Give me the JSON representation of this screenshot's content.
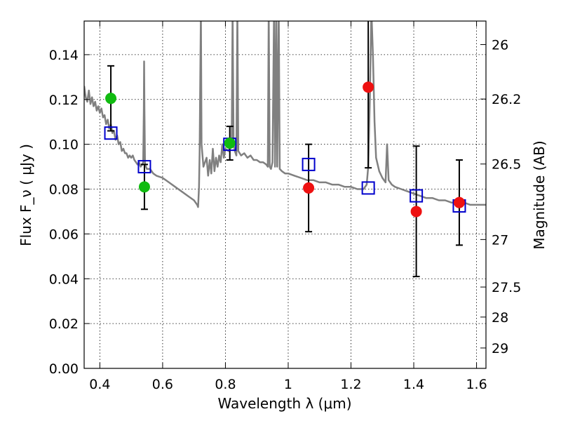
{
  "chart_data": {
    "type": "scatter",
    "xlabel": "Wavelength  λ (μm)",
    "ylabel": "Flux  F_ν  ( μJy )",
    "ylabel_right": "Magnitude (AB)",
    "xlim": [
      0.35,
      1.63
    ],
    "ylim": [
      0.0,
      0.155
    ],
    "grid": true,
    "x_ticks": [
      {
        "value": 0.4,
        "label": "0.4"
      },
      {
        "value": 0.6,
        "label": "0.6"
      },
      {
        "value": 0.8,
        "label": "0.8"
      },
      {
        "value": 1.0,
        "label": "1"
      },
      {
        "value": 1.2,
        "label": "1.2"
      },
      {
        "value": 1.4,
        "label": "1.4"
      },
      {
        "value": 1.6,
        "label": "1.6"
      }
    ],
    "y_ticks": [
      {
        "value": 0.0,
        "label": "0.00"
      },
      {
        "value": 0.02,
        "label": "0.02"
      },
      {
        "value": 0.04,
        "label": "0.04"
      },
      {
        "value": 0.06,
        "label": "0.06"
      },
      {
        "value": 0.08,
        "label": "0.08"
      },
      {
        "value": 0.1,
        "label": "0.10"
      },
      {
        "value": 0.12,
        "label": "0.12"
      },
      {
        "value": 0.14,
        "label": "0.14"
      }
    ],
    "y2_ticks": [
      {
        "flux": 0.1445,
        "label": "26"
      },
      {
        "flux": 0.1202,
        "label": "26.2"
      },
      {
        "flux": 0.0912,
        "label": "26.5"
      },
      {
        "flux": 0.0575,
        "label": "27"
      },
      {
        "flux": 0.0363,
        "label": "27.5"
      },
      {
        "flux": 0.0229,
        "label": "28"
      },
      {
        "flux": 0.0091,
        "label": "29"
      }
    ],
    "colors": {
      "spectrum": "#808080",
      "green": "#11bb11",
      "red": "#ee1111",
      "model": "#0000cc",
      "errorbar": "#000000"
    },
    "series": [
      {
        "marker": "green-circle",
        "points": [
          {
            "x": 0.435,
            "y": 0.1205,
            "yerr_low": 0.106,
            "yerr_high": 0.135
          },
          {
            "x": 0.542,
            "y": 0.081,
            "yerr_low": 0.071,
            "yerr_high": 0.091
          },
          {
            "x": 0.814,
            "y": 0.1005,
            "yerr_low": 0.093,
            "yerr_high": 0.108
          }
        ]
      },
      {
        "marker": "red-circle",
        "points": [
          {
            "x": 1.065,
            "y": 0.0805,
            "yerr_low": 0.061,
            "yerr_high": 0.1
          },
          {
            "x": 1.255,
            "y": 0.1255,
            "yerr_low": 0.0895,
            "yerr_high": 0.16
          },
          {
            "x": 1.408,
            "y": 0.07,
            "yerr_low": 0.041,
            "yerr_high": 0.0992
          },
          {
            "x": 1.545,
            "y": 0.074,
            "yerr_low": 0.055,
            "yerr_high": 0.093
          }
        ]
      },
      {
        "marker": "blue-open-square",
        "points": [
          {
            "x": 0.435,
            "y": 0.105
          },
          {
            "x": 0.542,
            "y": 0.09
          },
          {
            "x": 0.814,
            "y": 0.1
          },
          {
            "x": 1.065,
            "y": 0.091
          },
          {
            "x": 1.255,
            "y": 0.0805
          },
          {
            "x": 1.408,
            "y": 0.077
          },
          {
            "x": 1.545,
            "y": 0.0725
          }
        ]
      }
    ],
    "spectrum": [
      [
        0.35,
        0.126
      ],
      [
        0.355,
        0.121
      ],
      [
        0.36,
        0.119
      ],
      [
        0.365,
        0.124
      ],
      [
        0.37,
        0.118
      ],
      [
        0.375,
        0.121
      ],
      [
        0.38,
        0.117
      ],
      [
        0.385,
        0.119
      ],
      [
        0.39,
        0.115
      ],
      [
        0.395,
        0.117
      ],
      [
        0.4,
        0.114
      ],
      [
        0.405,
        0.116
      ],
      [
        0.41,
        0.112
      ],
      [
        0.415,
        0.113
      ],
      [
        0.42,
        0.109
      ],
      [
        0.425,
        0.111
      ],
      [
        0.43,
        0.107
      ],
      [
        0.435,
        0.109
      ],
      [
        0.44,
        0.105
      ],
      [
        0.445,
        0.106
      ],
      [
        0.45,
        0.102
      ],
      [
        0.455,
        0.104
      ],
      [
        0.46,
        0.1
      ],
      [
        0.465,
        0.101
      ],
      [
        0.47,
        0.097
      ],
      [
        0.475,
        0.098
      ],
      [
        0.48,
        0.096
      ],
      [
        0.485,
        0.096
      ],
      [
        0.49,
        0.094
      ],
      [
        0.495,
        0.095
      ],
      [
        0.5,
        0.094
      ],
      [
        0.505,
        0.095
      ],
      [
        0.51,
        0.093
      ],
      [
        0.515,
        0.092
      ],
      [
        0.52,
        0.091
      ],
      [
        0.525,
        0.092
      ],
      [
        0.53,
        0.09
      ],
      [
        0.535,
        0.091
      ],
      [
        0.538,
        0.092
      ],
      [
        0.54,
        0.115
      ],
      [
        0.541,
        0.137
      ],
      [
        0.542,
        0.115
      ],
      [
        0.544,
        0.091
      ],
      [
        0.55,
        0.089
      ],
      [
        0.56,
        0.089
      ],
      [
        0.57,
        0.087
      ],
      [
        0.58,
        0.086
      ],
      [
        0.6,
        0.085
      ],
      [
        0.62,
        0.083
      ],
      [
        0.64,
        0.081
      ],
      [
        0.66,
        0.079
      ],
      [
        0.68,
        0.077
      ],
      [
        0.7,
        0.075
      ],
      [
        0.705,
        0.074
      ],
      [
        0.71,
        0.073
      ],
      [
        0.713,
        0.072
      ],
      [
        0.716,
        0.081
      ],
      [
        0.718,
        0.097
      ],
      [
        0.72,
        0.13
      ],
      [
        0.722,
        0.16
      ],
      [
        0.724,
        0.1
      ],
      [
        0.73,
        0.09
      ],
      [
        0.74,
        0.094
      ],
      [
        0.745,
        0.086
      ],
      [
        0.75,
        0.093
      ],
      [
        0.755,
        0.087
      ],
      [
        0.76,
        0.098
      ],
      [
        0.765,
        0.088
      ],
      [
        0.77,
        0.094
      ],
      [
        0.775,
        0.09
      ],
      [
        0.78,
        0.095
      ],
      [
        0.785,
        0.092
      ],
      [
        0.79,
        0.1
      ],
      [
        0.795,
        0.094
      ],
      [
        0.8,
        0.098
      ],
      [
        0.81,
        0.097
      ],
      [
        0.82,
        0.1
      ],
      [
        0.823,
        0.16
      ],
      [
        0.826,
        0.1
      ],
      [
        0.83,
        0.097
      ],
      [
        0.835,
        0.095
      ],
      [
        0.838,
        0.16
      ],
      [
        0.841,
        0.097
      ],
      [
        0.85,
        0.095
      ],
      [
        0.86,
        0.096
      ],
      [
        0.87,
        0.094
      ],
      [
        0.88,
        0.095
      ],
      [
        0.89,
        0.093
      ],
      [
        0.9,
        0.093
      ],
      [
        0.91,
        0.092
      ],
      [
        0.92,
        0.092
      ],
      [
        0.93,
        0.091
      ],
      [
        0.935,
        0.09
      ],
      [
        0.938,
        0.16
      ],
      [
        0.941,
        0.09
      ],
      [
        0.945,
        0.089
      ],
      [
        0.95,
        0.092
      ],
      [
        0.955,
        0.16
      ],
      [
        0.958,
        0.09
      ],
      [
        0.962,
        0.16
      ],
      [
        0.965,
        0.09
      ],
      [
        0.97,
        0.16
      ],
      [
        0.973,
        0.089
      ],
      [
        0.98,
        0.088
      ],
      [
        0.99,
        0.087
      ],
      [
        1.0,
        0.087
      ],
      [
        1.02,
        0.086
      ],
      [
        1.04,
        0.085
      ],
      [
        1.06,
        0.084
      ],
      [
        1.08,
        0.084
      ],
      [
        1.1,
        0.083
      ],
      [
        1.12,
        0.083
      ],
      [
        1.14,
        0.082
      ],
      [
        1.16,
        0.082
      ],
      [
        1.18,
        0.081
      ],
      [
        1.2,
        0.081
      ],
      [
        1.22,
        0.08
      ],
      [
        1.24,
        0.08
      ],
      [
        1.25,
        0.082
      ],
      [
        1.255,
        0.09
      ],
      [
        1.26,
        0.12
      ],
      [
        1.265,
        0.16
      ],
      [
        1.27,
        0.14
      ],
      [
        1.275,
        0.11
      ],
      [
        1.28,
        0.094
      ],
      [
        1.29,
        0.088
      ],
      [
        1.3,
        0.085
      ],
      [
        1.31,
        0.083
      ],
      [
        1.315,
        0.1
      ],
      [
        1.32,
        0.084
      ],
      [
        1.33,
        0.082
      ],
      [
        1.34,
        0.081
      ],
      [
        1.36,
        0.08
      ],
      [
        1.38,
        0.079
      ],
      [
        1.4,
        0.078
      ],
      [
        1.42,
        0.077
      ],
      [
        1.44,
        0.076
      ],
      [
        1.46,
        0.076
      ],
      [
        1.48,
        0.075
      ],
      [
        1.5,
        0.075
      ],
      [
        1.52,
        0.074
      ],
      [
        1.54,
        0.074
      ],
      [
        1.56,
        0.074
      ],
      [
        1.58,
        0.073
      ],
      [
        1.6,
        0.073
      ],
      [
        1.62,
        0.073
      ],
      [
        1.63,
        0.073
      ]
    ]
  }
}
